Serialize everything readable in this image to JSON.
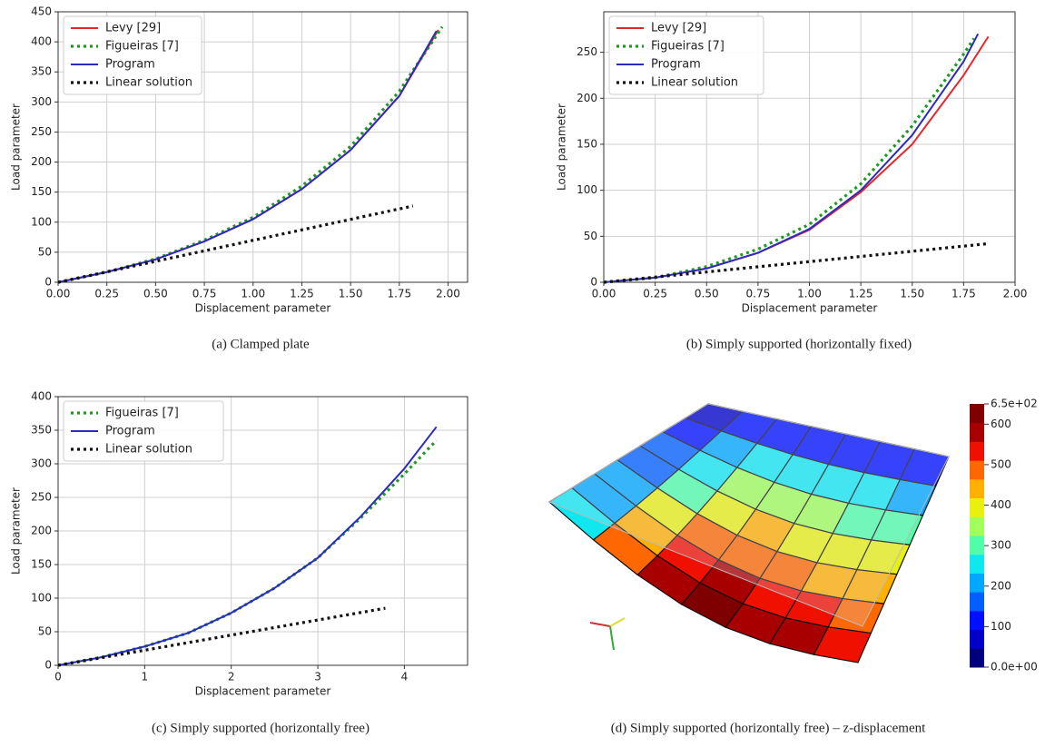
{
  "chart_data": [
    {
      "type": "line",
      "caption": "(a) Clamped plate",
      "xlabel": "Displacement parameter",
      "ylabel": "Load parameter",
      "xlim": [
        0,
        2.1
      ],
      "ylim": [
        0,
        450
      ],
      "xticks": [
        {
          "value": 0,
          "label": "0.00"
        },
        {
          "value": 0.25,
          "label": "0.25"
        },
        {
          "value": 0.5,
          "label": "0.50"
        },
        {
          "value": 0.75,
          "label": "0.75"
        },
        {
          "value": 1,
          "label": "1.00"
        },
        {
          "value": 1.25,
          "label": "1.25"
        },
        {
          "value": 1.5,
          "label": "1.50"
        },
        {
          "value": 1.75,
          "label": "1.75"
        },
        {
          "value": 2,
          "label": "2.00"
        }
      ],
      "yticks": [
        0,
        50,
        100,
        150,
        200,
        250,
        300,
        350,
        400,
        450
      ],
      "grid": true,
      "legend": "upper-left",
      "series": [
        {
          "name": "Levy [29]",
          "color": "#e8262a",
          "linestyle": "solid",
          "x": [
            0,
            0.25,
            0.5,
            0.75,
            1.0,
            1.25,
            1.5,
            1.75,
            1.95
          ],
          "values": [
            0,
            17,
            38,
            68,
            105,
            155,
            220,
            310,
            420
          ]
        },
        {
          "name": "Figueiras [7]",
          "color": "#1f9a1f",
          "linestyle": "dotted",
          "x": [
            0,
            0.25,
            0.5,
            0.75,
            1.0,
            1.25,
            1.5,
            1.75,
            1.97
          ],
          "values": [
            0,
            17,
            39,
            70,
            108,
            160,
            226,
            318,
            425
          ]
        },
        {
          "name": "Program",
          "color": "#2b2bbf",
          "linestyle": "solid",
          "x": [
            0,
            0.25,
            0.5,
            0.75,
            1.0,
            1.25,
            1.5,
            1.75,
            1.94
          ],
          "values": [
            0,
            17,
            38,
            68,
            105,
            155,
            220,
            310,
            418
          ]
        },
        {
          "name": "Linear solution",
          "color": "#111111",
          "linestyle": "dotted",
          "x": [
            0,
            1.82
          ],
          "values": [
            0,
            127
          ]
        }
      ]
    },
    {
      "type": "line",
      "caption": "(b) Simply supported (horizontally fixed)",
      "xlabel": "Displacement parameter",
      "ylabel": "Load parameter",
      "xlim": [
        0,
        2.0
      ],
      "ylim": [
        0,
        294
      ],
      "xticks": [
        {
          "value": 0,
          "label": "0.00"
        },
        {
          "value": 0.25,
          "label": "0.25"
        },
        {
          "value": 0.5,
          "label": "0.50"
        },
        {
          "value": 0.75,
          "label": "0.75"
        },
        {
          "value": 1,
          "label": "1.00"
        },
        {
          "value": 1.25,
          "label": "1.25"
        },
        {
          "value": 1.5,
          "label": "1.50"
        },
        {
          "value": 1.75,
          "label": "1.75"
        },
        {
          "value": 2,
          "label": "2.00"
        }
      ],
      "yticks": [
        0,
        50,
        100,
        150,
        200,
        250
      ],
      "grid": true,
      "legend": "upper-left",
      "series": [
        {
          "name": "Levy [29]",
          "color": "#e8262a",
          "linestyle": "solid",
          "x": [
            0,
            0.25,
            0.5,
            0.75,
            1.0,
            1.25,
            1.5,
            1.75,
            1.87
          ],
          "values": [
            0,
            5,
            15,
            32,
            57,
            98,
            150,
            225,
            267
          ]
        },
        {
          "name": "Figueiras [7]",
          "color": "#1f9a1f",
          "linestyle": "dotted",
          "x": [
            0,
            0.25,
            0.5,
            0.75,
            1.0,
            1.25,
            1.5,
            1.75,
            1.8
          ],
          "values": [
            0,
            5,
            17,
            36,
            63,
            107,
            170,
            248,
            265
          ]
        },
        {
          "name": "Program",
          "color": "#2b2bbf",
          "linestyle": "solid",
          "x": [
            0,
            0.25,
            0.5,
            0.75,
            1.0,
            1.25,
            1.5,
            1.75,
            1.82
          ],
          "values": [
            0,
            5,
            15,
            32,
            58,
            100,
            160,
            240,
            270
          ]
        },
        {
          "name": "Linear solution",
          "color": "#111111",
          "linestyle": "dotted",
          "x": [
            0,
            1.87
          ],
          "values": [
            0,
            42
          ]
        }
      ]
    },
    {
      "type": "line",
      "caption": "(c) Simply supported (horizontally free)",
      "xlabel": "Displacement parameter",
      "ylabel": "Load parameter",
      "xlim": [
        0,
        4.73
      ],
      "ylim": [
        0,
        400
      ],
      "xticks": [
        0,
        1,
        2,
        3,
        4
      ],
      "yticks": [
        0,
        50,
        100,
        150,
        200,
        250,
        300,
        350,
        400
      ],
      "grid": true,
      "legend": "upper-left",
      "series": [
        {
          "name": "Figueiras [7]",
          "color": "#1f9a1f",
          "linestyle": "dotted",
          "x": [
            0,
            0.5,
            1,
            1.5,
            2,
            2.5,
            3,
            3.5,
            4,
            4.37
          ],
          "values": [
            0,
            12,
            28,
            48,
            78,
            115,
            160,
            220,
            285,
            335
          ]
        },
        {
          "name": "Program",
          "color": "#2b2bbf",
          "linestyle": "solid",
          "x": [
            0,
            0.5,
            1,
            1.5,
            2,
            2.5,
            3,
            3.5,
            4,
            4.37
          ],
          "values": [
            0,
            12,
            28,
            48,
            78,
            115,
            160,
            222,
            293,
            355
          ]
        },
        {
          "name": "Linear solution",
          "color": "#111111",
          "linestyle": "dotted",
          "x": [
            0,
            3.78
          ],
          "values": [
            0,
            85
          ]
        }
      ]
    },
    {
      "type": "surface",
      "caption": "(d) Simply supported (horizontally free) – z-displacement",
      "colorbar": {
        "lim": [
          0,
          650
        ],
        "ticks": [
          {
            "value": 650,
            "label": "6.5e+02"
          },
          600,
          500,
          400,
          300,
          200,
          100,
          {
            "value": 0,
            "label": "0.0e+00"
          }
        ],
        "colors": [
          "#00007f",
          "#0000c8",
          "#0010ff",
          "#0060ff",
          "#00a8ff",
          "#10e8f0",
          "#50ffa8",
          "#a0ff58",
          "#e8f010",
          "#ffb000",
          "#ff6800",
          "#f01000",
          "#a80000",
          "#7f0000"
        ]
      }
    }
  ]
}
